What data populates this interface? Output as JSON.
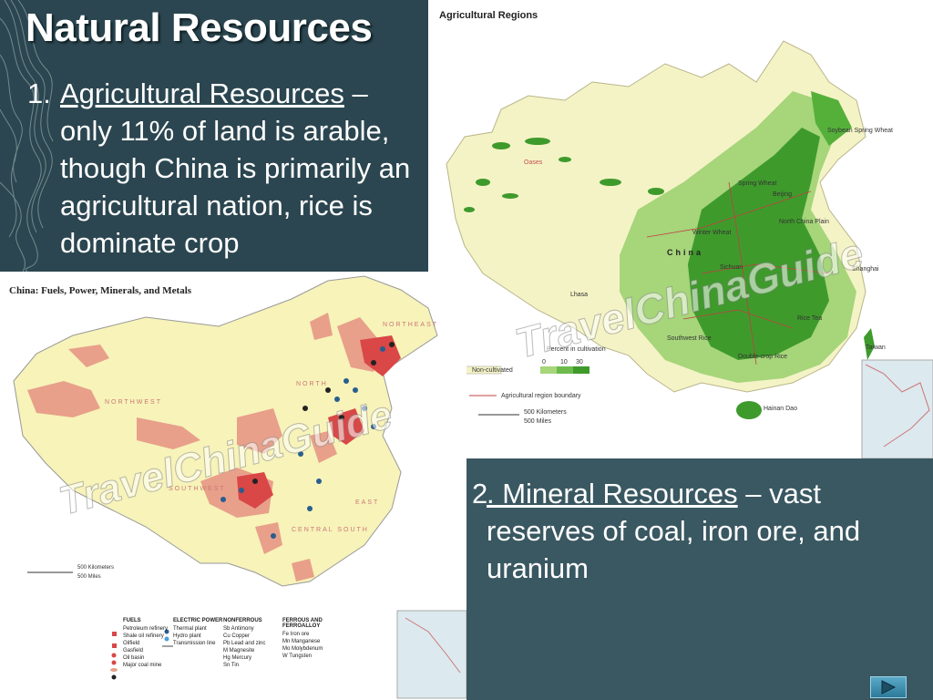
{
  "slide": {
    "title": "Natural Resources",
    "bullet1": {
      "number": "1.",
      "heading": "Agricultural Resources",
      "text": " – only 11% of land is arable, though China is primarily an agricultural nation, rice is dominate crop"
    },
    "bullet2": {
      "number": "2",
      "heading": ". Mineral Resources",
      "text": " – vast reserves of coal, iron ore, and uranium"
    }
  },
  "map_ag": {
    "title": "Agricultural Regions",
    "country_label": "China",
    "watermark": "TravelChinaGuide",
    "labels": [
      "Oases",
      "Spring Wheat",
      "Winter Wheat",
      "North China Plain",
      "Lhasa",
      "Shanghai",
      "Taiwan",
      "Hainan Dao",
      "Beijing",
      "Sichuan",
      "Double-crop Rice",
      "Southwest Rice",
      "Rice Tea",
      "Soybean Spring Wheat"
    ],
    "legend": {
      "percent_title": "Percent in cultivation",
      "ticks": [
        "0",
        "10",
        "30"
      ],
      "non_cultivated": "Non-cultivated",
      "boundary": "Agricultural region boundary",
      "km": "500 Kilometers",
      "miles": "500 Miles"
    },
    "colors": {
      "light": "#f5f5c8",
      "mid": "#a8d67a",
      "dark": "#3f9a2c"
    }
  },
  "map_min": {
    "title": "China: Fuels, Power, Minerals, and Metals",
    "watermark": "TravelChinaGuide",
    "regions": [
      "NORTHWEST",
      "NORTH",
      "NORTHEAST",
      "SOUTHWEST",
      "EAST",
      "CENTRAL SOUTH"
    ],
    "scale_km": "500 Kilometers",
    "scale_mi": "500 Miles",
    "legend": {
      "fuels": {
        "heading": "FUELS",
        "items": [
          "Petroleum refinery",
          "Shale oil refinery",
          "Oilfield",
          "Gasfield",
          "Oil basin",
          "Major coal mine"
        ]
      },
      "power": {
        "heading": "ELECTRIC POWER",
        "items": [
          "Thermal plant",
          "Hydro plant",
          "Transmission line"
        ]
      },
      "nonferrous": {
        "heading": "NONFERROUS",
        "items": [
          "Sb Antimony",
          "Cu Copper",
          "Pb Lead and zinc",
          "M Magnesite",
          "Hg Mercury",
          "Sn Tin"
        ]
      },
      "ferrous": {
        "heading": "FERROUS AND FERROALLOY",
        "items": [
          "Fe Iron ore",
          "Mn Manganese",
          "Mo Molybdenum",
          "W Tungsten"
        ]
      }
    }
  },
  "nav": {
    "next_label": "▶"
  }
}
